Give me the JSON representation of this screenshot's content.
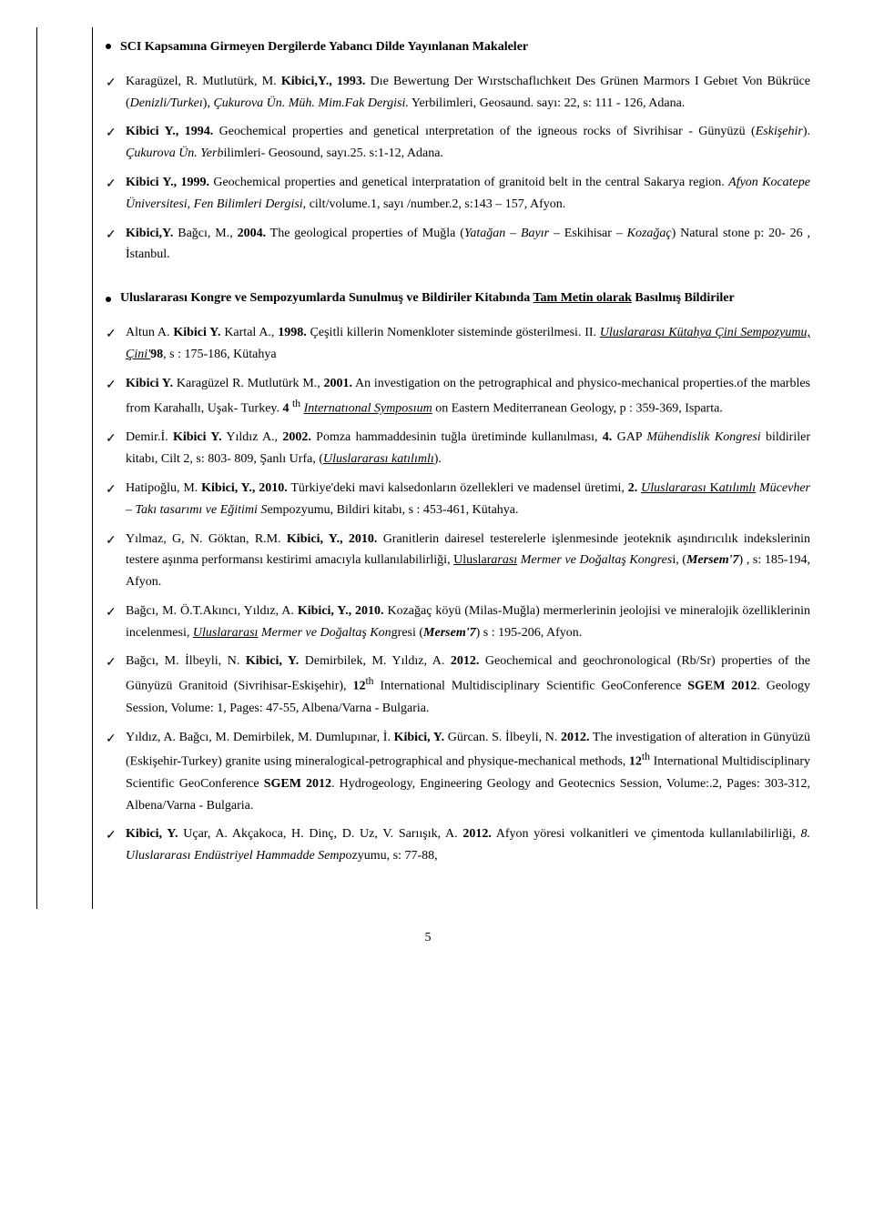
{
  "heading1": "SCI Kapsamına Girmeyen Dergilerde Yabancı Dilde Yayınlanan Makaleler",
  "sec1": [
    {
      "html": "Karagüzel, R. Mutlutürk, M. <b>Kibici,Y., 1993.</b> Dıe Bewertung Der Wırstschaflıchkeıt Des Grünen Marmors I Gebıet Von Bükrüce (<i>Denizli/Turkeı</i>), <i>Çukurova Ün. Müh. Mim.Fak Dergisi.</i> Yerbilimleri, Geosaund. sayı: 22, s: 111 - 126, Adana."
    },
    {
      "html": "<b>Kibici Y., 1994.</b> Geochemical properties and genetical ınterpretation of the igneous rocks of Sivrihisar - Günyüzü (<i>Eskişehir</i>). <i>Çukurova Ün. Yerb</i>ilimleri- Geosound, sayı.25. s:1-12, Adana."
    },
    {
      "html": "<b>Kibici Y., 1999.</b> Geochemical properties and genetical interpratation of granitoid belt in the central Sakarya region. <i>Afyon Kocatepe Üniversitesi, Fen Bilimleri Dergisi,</i> cilt/volume.1, sayı /number.2, s:143 – 157, Afyon."
    },
    {
      "html": "<b>Kibici,Y.</b> Bağcı, M., <b>2004.</b> The geological properties of Muğla (<i>Yatağan – Bayır</i> – Eskihisar – <i>Kozağaç</i>) Natural stone p: 20- 26 , İstanbul."
    }
  ],
  "heading2_a": "Uluslararası Kongre ve Sempozyumlarda Sunulmuş ve Bildiriler Kitabında ",
  "heading2_b": "Tam Metin olarak",
  "heading2_c": " Basılmış Bildiriler",
  "sec2": [
    {
      "html": "Altun A. <b>Kibici Y.</b> Kartal A., <b>1998.</b> Çeşitli killerin Nomenkloter sisteminde gösterilmesi. II. <u><i>Uluslararası Kütahya Çini Sempozyumu, Çini'</i></u><b>98</b>, s : 175-186, Kütahya"
    },
    {
      "html": "<b>Kibici Y.</b> Karagüzel R. Mutlutürk M., <b>2001.</b> An investigation on the petrographical and physico-mechanical properties.of the marbles from Karahallı, Uşak- Turkey. <b>4</b> <sup>th</sup> <u><i>Internatıonal Symposıum</i></u> on Eastern Mediterranean Geology, p : 359-369, Isparta."
    },
    {
      "html": "Demir.İ. <b>Kibici Y.</b> Yıldız A., <b>2002.</b> Pomza hammaddesinin tuğla üretiminde kullanılması, <b>4.</b> GAP <i>Mühendislik Kongresi</i> bildiriler kitabı, Cilt 2, s: 803- 809, Şanlı Urfa, (<u><i>Uluslararası katılımlı</i></u>)."
    },
    {
      "html": "Hatipoğlu, M. <b>Kibici, Y., 2010.</b> Türkiye'deki mavi kalsedonların özellekleri ve madensel üretimi, <b>2.</b> <u><i>Uluslararası</i> K<i>atılımlı</i></u> <i>Mücevher – Takı tasarımı ve Eğitimi S</i>empozyumu, Bildiri kitabı, s : 453-461, Kütahya."
    },
    {
      "html": "Yılmaz, G, N. Göktan, R.M. <b>Kibici, Y., 2010.</b> Granitlerin dairesel testerelerle işlenmesinde jeoteknik aşındırıcılık indekslerinin testere aşınma performansı kestirimi amacıyla kullanılabilirliği, <u>Uluslar<i>arası</i></u><i> Mermer ve Doğaltaş Kongres</i>i, (<b><i>Mersem'7</i></b>) , s: 185-194, Afyon."
    },
    {
      "html": "Bağcı, M. Ö.T.Akıncı, Yıldız, A. <b>Kibici, Y., 2010.</b> Kozağaç köyü (Milas-Muğla) mermerlerinin jeolojisi ve mineralojik özelliklerinin incelenmesi, <u><i>Uluslararası</i></u><i> Mermer ve Doğaltaş Kon</i>gresi (<b><i>Mersem'7</i></b>) s : 195-206, Afyon."
    },
    {
      "html": "Bağcı, M. İlbeyli, N. <b>Kibici, Y.</b> Demirbilek, M. Yıldız, A. <b>2012.</b> Geochemical and geochronological (Rb/Sr) properties of the Günyüzü Granitoid (Sivrihisar-Eskişehir), <b>12</b><sup>th</sup> International Multidisciplinary Scientific GeoConference <b>SGEM 2012</b>. Geology Session, Volume: 1, Pages: 47-55, Albena/Varna - Bulgaria."
    },
    {
      "html": "Yıldız, A. Bağcı, M. Demirbilek, M. Dumlupınar, İ. <b>Kibici, Y.</b> Gürcan. S. İlbeyli, N. <b>2012.</b> The investigation of alteration in Günyüzü (Eskişehir-Turkey) granite using mineralogical-petrographical and physique-mechanical methods, <b>12</b><sup>th</sup> International Multidisciplinary Scientific GeoConference <b>SGEM 2012</b>. Hydrogeology, Engineering Geology and Geotecnics Session, Volume:.2, Pages: 303-312, Albena/Varna - Bulgaria."
    },
    {
      "html": "<b>Kibici, Y.</b> Uçar, A. Akçakoca, H. Dinç, D. Uz, V. Sarıışık, A. <b>2012.</b> Afyon yöresi volkanitleri ve çimentoda kullanılabilirliği, <i>8. Uluslararası Endüstriyel Hammadde Semp</i>ozyumu, s: 77-88,"
    }
  ],
  "pagenum": "5"
}
